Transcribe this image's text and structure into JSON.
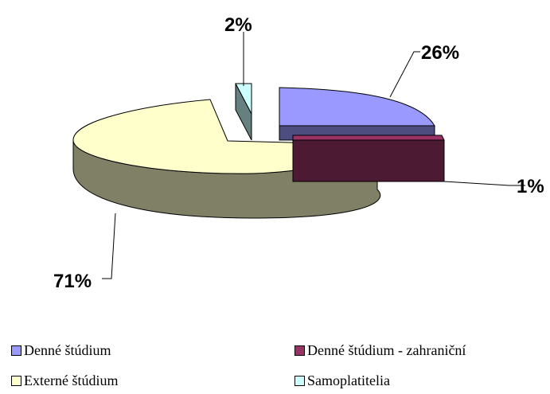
{
  "chart_data": {
    "type": "pie",
    "title": "",
    "legend_position": "bottom",
    "slices": [
      {
        "label": "Denné štúdium",
        "value": 26,
        "display": "26%",
        "color": "#9999ff",
        "side_color": "#4d4d80"
      },
      {
        "label": "Denné štúdium - zahraniční",
        "value": 1,
        "display": "1%",
        "color": "#993366",
        "side_color": "#4d1a33"
      },
      {
        "label": "Externé štúdium",
        "value": 71,
        "display": "71%",
        "color": "#ffffcc",
        "side_color": "#808066"
      },
      {
        "label": "Samoplatitelia",
        "value": 2,
        "display": "2%",
        "color": "#ccffff",
        "side_color": "#668080"
      }
    ]
  }
}
